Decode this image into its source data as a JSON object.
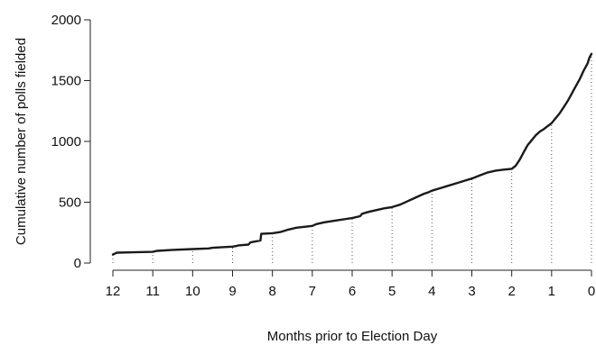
{
  "chart_data": {
    "type": "line",
    "title": "",
    "xlabel": "Months prior to Election Day",
    "ylabel": "Cumulative number of polls fielded",
    "xlim": [
      12,
      0
    ],
    "ylim": [
      0,
      2000
    ],
    "xticks": [
      12,
      11,
      10,
      9,
      8,
      7,
      6,
      5,
      4,
      3,
      2,
      1,
      0
    ],
    "yticks": [
      0,
      500,
      1000,
      1500,
      2000
    ],
    "grid": false,
    "month_markers": [
      12,
      11,
      10,
      9,
      8,
      7,
      6,
      5,
      4,
      3,
      2,
      1,
      0
    ],
    "series": [
      {
        "x": [
          12.0,
          11.9,
          11.5,
          11.0,
          10.9,
          10.5,
          10.0,
          9.6,
          9.5,
          9.0,
          8.9,
          8.85,
          8.6,
          8.55,
          8.3,
          8.28,
          8.0,
          7.8,
          7.6,
          7.4,
          7.0,
          6.9,
          6.7,
          6.5,
          6.3,
          6.0,
          5.8,
          5.75,
          5.6,
          5.4,
          5.2,
          5.0,
          4.8,
          4.6,
          4.4,
          4.2,
          4.1,
          4.0,
          3.8,
          3.6,
          3.4,
          3.2,
          3.0,
          2.8,
          2.6,
          2.4,
          2.2,
          2.0,
          1.9,
          1.8,
          1.7,
          1.6,
          1.5,
          1.4,
          1.3,
          1.2,
          1.1,
          1.0,
          0.9,
          0.8,
          0.7,
          0.6,
          0.5,
          0.4,
          0.3,
          0.2,
          0.1,
          0.05,
          0.0
        ],
        "values": [
          70,
          85,
          88,
          92,
          100,
          108,
          115,
          120,
          125,
          135,
          140,
          145,
          152,
          170,
          185,
          240,
          245,
          255,
          275,
          290,
          305,
          320,
          335,
          345,
          355,
          370,
          385,
          405,
          420,
          435,
          450,
          460,
          480,
          510,
          540,
          570,
          580,
          595,
          615,
          635,
          655,
          675,
          695,
          720,
          745,
          760,
          768,
          775,
          800,
          850,
          910,
          970,
          1010,
          1050,
          1080,
          1100,
          1125,
          1150,
          1190,
          1230,
          1280,
          1330,
          1390,
          1450,
          1510,
          1580,
          1640,
          1690,
          1720
        ]
      }
    ]
  }
}
